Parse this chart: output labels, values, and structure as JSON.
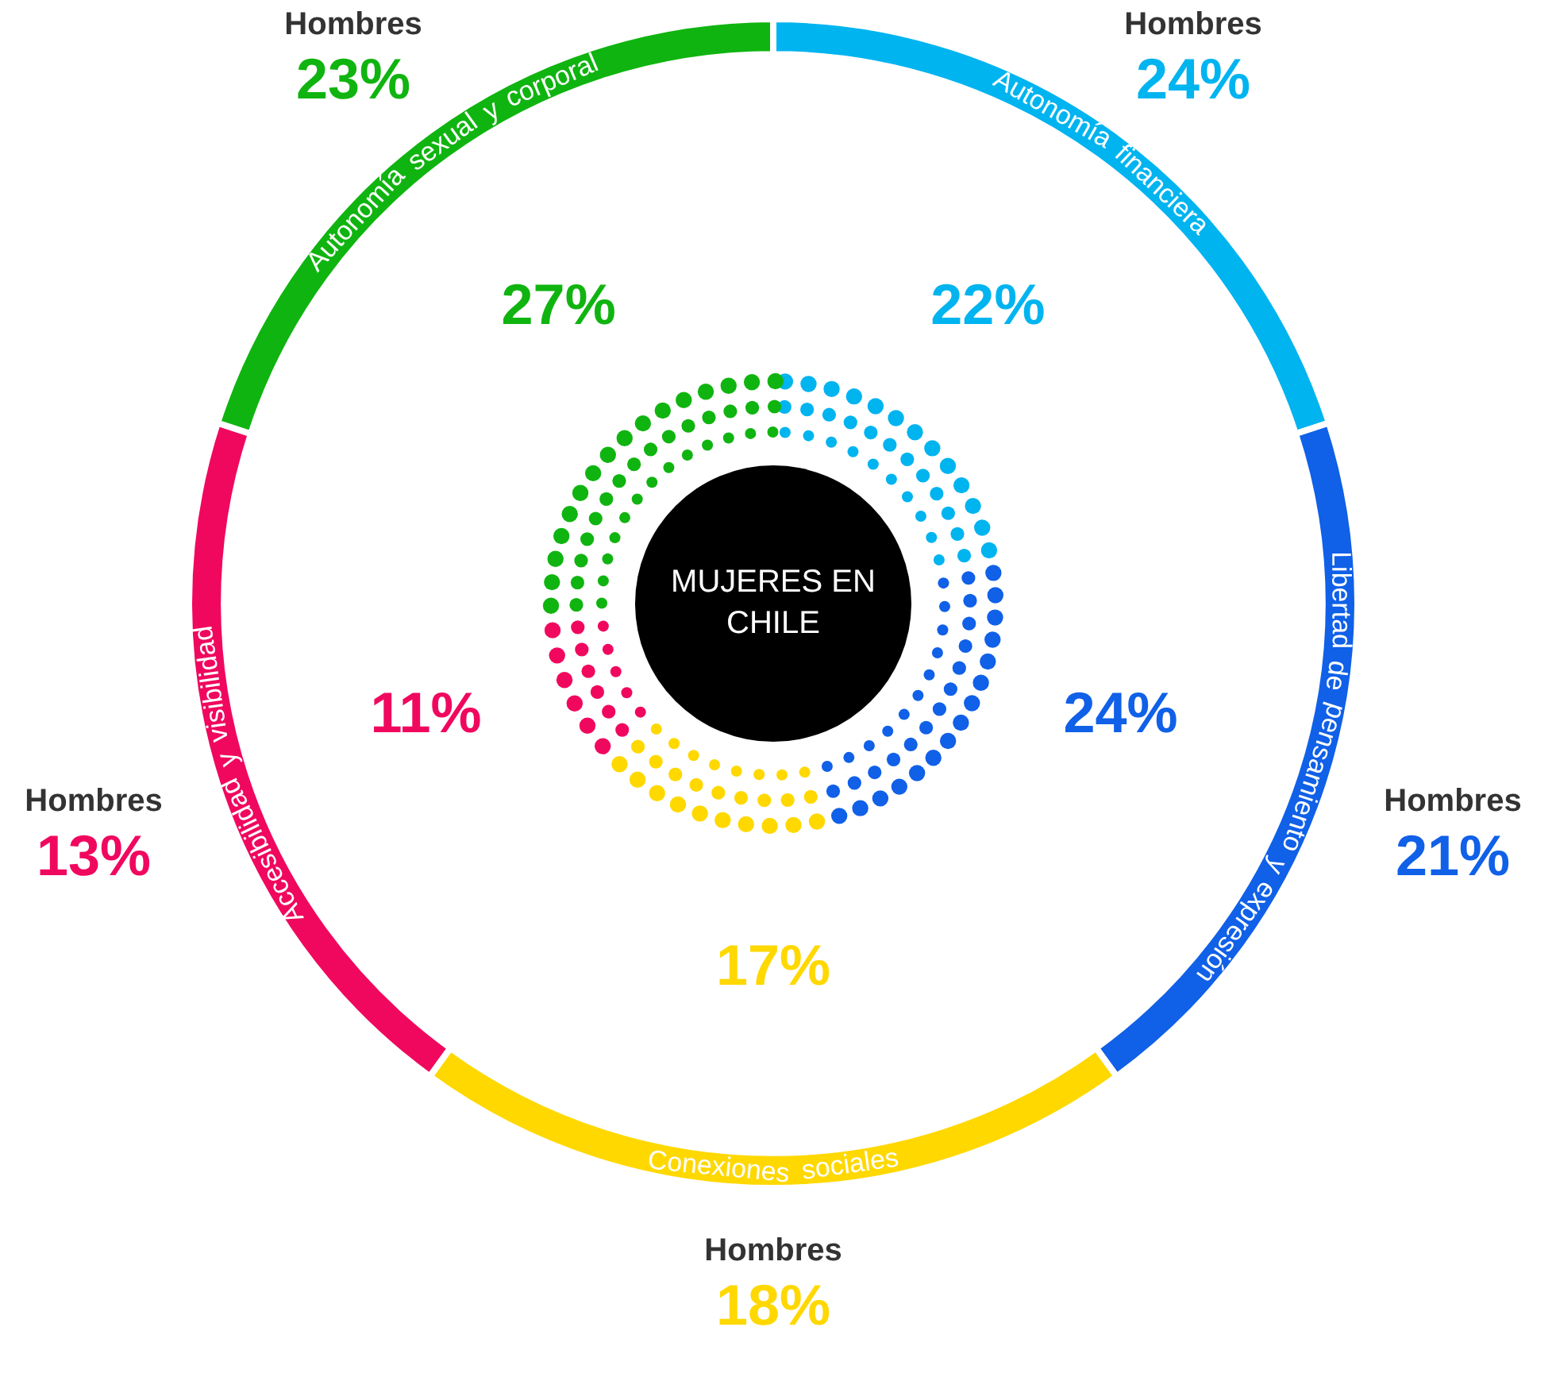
{
  "chart_data": {
    "type": "other",
    "title": "MUJERES EN CHILE",
    "categories": [
      "Autonomía financiera",
      "Libertad de pensamiento y expresión",
      "Conexiones sociales",
      "Accesibilidad y visibilidad",
      "Autonomía sexual y corporal"
    ],
    "colors": [
      "#00b4f0",
      "#1060e8",
      "#ffd800",
      "#f0085f",
      "#10b410"
    ],
    "series": [
      {
        "values": [
          22,
          24,
          17,
          11,
          27
        ],
        "value_labels": [
          "22%",
          "24%",
          "17%",
          "11%",
          "27%"
        ]
      },
      {
        "name": "Hombres",
        "values": [
          24,
          21,
          18,
          13,
          23
        ],
        "value_labels": [
          "24%",
          "21%",
          "18%",
          "13%",
          "23%"
        ]
      }
    ]
  }
}
